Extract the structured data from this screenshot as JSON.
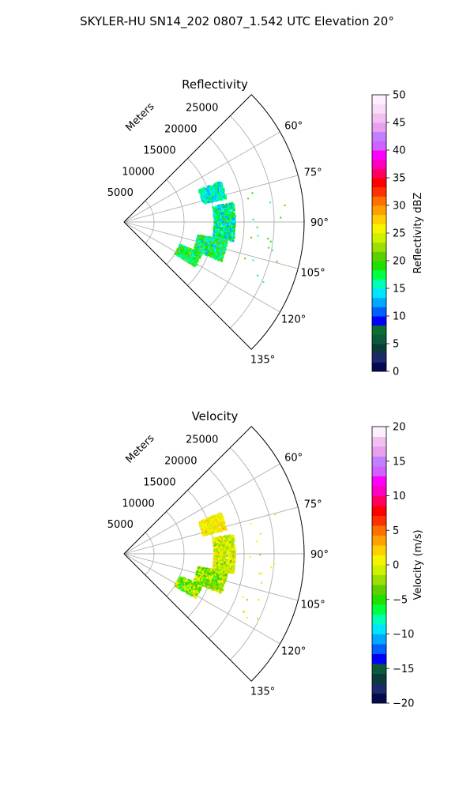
{
  "suptitle": "SKYLER-HU  SN14_202  0807_1.542 UTC Elevation 20°",
  "chart_data": [
    {
      "type": "heatmap",
      "subtype": "polar-wedge",
      "title": "Reflectivity",
      "radial_label": "Meters",
      "range_ticks": [
        5000,
        10000,
        15000,
        20000,
        25000
      ],
      "range_tick_labels": [
        "5000",
        "10000",
        "15000",
        "20000",
        "25000"
      ],
      "rmax": 30000,
      "azimuth_range_deg": [
        45,
        135
      ],
      "azimuth_ticks": [
        60,
        75,
        90,
        105,
        120,
        135
      ],
      "azimuth_tick_labels": [
        "60°",
        "75°",
        "90°",
        "105°",
        "120°",
        "135°"
      ],
      "grid": true,
      "colorbar": {
        "label": "Reflectivity dBZ",
        "min": 0,
        "max": 50,
        "ticks": [
          0,
          5,
          10,
          15,
          20,
          25,
          30,
          35,
          40,
          45,
          50
        ],
        "tick_labels": [
          "0",
          "5",
          "10",
          "15",
          "20",
          "25",
          "30",
          "35",
          "40",
          "45",
          "50"
        ],
        "colors": [
          "#050a50",
          "#1a2a6a",
          "#0b3c3a",
          "#0c5a3c",
          "#0a6e32",
          "#0000ff",
          "#0060ff",
          "#00a8ff",
          "#00e5ff",
          "#00ffb4",
          "#00ff40",
          "#20e000",
          "#5bd200",
          "#9be000",
          "#d0f000",
          "#f5f500",
          "#ffd000",
          "#ffa000",
          "#ff7000",
          "#ff3000",
          "#ff0000",
          "#ff0060",
          "#ff00c0",
          "#ff00ff",
          "#d060ff",
          "#c080ff",
          "#e8a0ee",
          "#f0c0f0",
          "#f8dcf8",
          "#fff0ff"
        ],
        "position": "right"
      },
      "echo_regions": [
        {
          "az_range": [
            67,
            77
          ],
          "r_range": [
            13500,
            17500
          ],
          "value_range": [
            12,
            18
          ]
        },
        {
          "az_range": [
            80,
            100
          ],
          "r_range": [
            15000,
            18500
          ],
          "value_range": [
            12,
            20
          ]
        },
        {
          "az_range": [
            100,
            112
          ],
          "r_range": [
            12500,
            17500
          ],
          "value_range": [
            13,
            22
          ]
        },
        {
          "az_range": [
            112,
            122
          ],
          "r_range": [
            10000,
            14000
          ],
          "value_range": [
            14,
            22
          ]
        }
      ]
    },
    {
      "type": "heatmap",
      "subtype": "polar-wedge",
      "title": "Velocity",
      "radial_label": "Meters",
      "range_ticks": [
        5000,
        10000,
        15000,
        20000,
        25000
      ],
      "range_tick_labels": [
        "5000",
        "10000",
        "15000",
        "20000",
        "25000"
      ],
      "rmax": 30000,
      "azimuth_range_deg": [
        45,
        135
      ],
      "azimuth_ticks": [
        60,
        75,
        90,
        105,
        120,
        135
      ],
      "azimuth_tick_labels": [
        "60°",
        "75°",
        "90°",
        "105°",
        "120°",
        "135°"
      ],
      "grid": true,
      "colorbar": {
        "label": "Velocity (m/s)",
        "min": -20,
        "max": 20,
        "ticks": [
          -20,
          -15,
          -10,
          -5,
          0,
          5,
          10,
          15,
          20
        ],
        "tick_labels": [
          "−20",
          "−15",
          "−10",
          "−5",
          "0",
          "5",
          "10",
          "15",
          "20"
        ],
        "colors": [
          "#050a50",
          "#1a2a6a",
          "#0b3c3a",
          "#0c5a3c",
          "#0000ff",
          "#0060ff",
          "#00a8ff",
          "#00e5ff",
          "#00ffb4",
          "#00ff40",
          "#20e000",
          "#5bd200",
          "#9be000",
          "#d0f000",
          "#f5f500",
          "#ffd000",
          "#ffa000",
          "#ff7000",
          "#ff3000",
          "#ff0000",
          "#ff0060",
          "#ff00c0",
          "#ff00ff",
          "#d060ff",
          "#c080ff",
          "#e8a0ee",
          "#f0c0f0",
          "#fff0ff"
        ],
        "position": "right"
      },
      "echo_regions": [
        {
          "az_range": [
            67,
            77
          ],
          "r_range": [
            13500,
            17500
          ],
          "value_range": [
            -1,
            3
          ]
        },
        {
          "az_range": [
            80,
            100
          ],
          "r_range": [
            15000,
            18500
          ],
          "value_range": [
            -3,
            2
          ]
        },
        {
          "az_range": [
            100,
            112
          ],
          "r_range": [
            12500,
            17500
          ],
          "value_range": [
            -6,
            2
          ]
        },
        {
          "az_range": [
            112,
            122
          ],
          "r_range": [
            10000,
            14000
          ],
          "value_range": [
            -7,
            2
          ]
        }
      ]
    }
  ]
}
